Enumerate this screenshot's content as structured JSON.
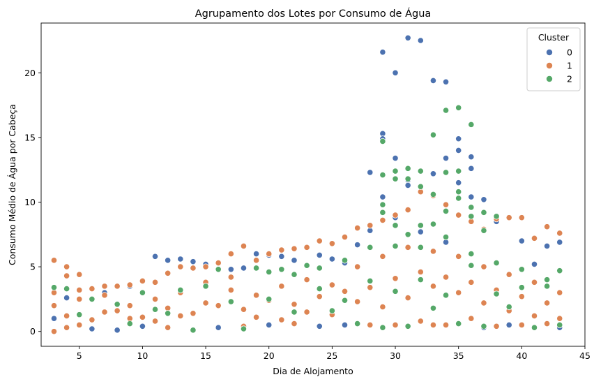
{
  "chart_data": {
    "type": "scatter",
    "title": "Agrupamento dos Lotes por Consumo de Água",
    "xlabel": "Dia de Alojamento",
    "ylabel": "Consumo Médio de Água por Cabeça",
    "xlim": [
      1.98,
      45
    ],
    "ylim": [
      -1.15,
      23.85
    ],
    "x_ticks": [
      5,
      10,
      15,
      20,
      25,
      30,
      35,
      40,
      45
    ],
    "y_ticks": [
      0,
      5,
      10,
      15,
      20
    ],
    "grid": false,
    "legend": {
      "title": "Cluster",
      "position": "top-right"
    },
    "series": [
      {
        "name": "0",
        "color": "#4c72b0",
        "points": [
          [
            29,
            21.6
          ],
          [
            30,
            20.0
          ],
          [
            31,
            22.7
          ],
          [
            32,
            22.5
          ],
          [
            33,
            19.4
          ],
          [
            34,
            19.3
          ],
          [
            29,
            15.3
          ],
          [
            29,
            14.9
          ],
          [
            35,
            14.9
          ],
          [
            35,
            14.0
          ],
          [
            30,
            13.4
          ],
          [
            34,
            13.4
          ],
          [
            36,
            13.5
          ],
          [
            36,
            12.6
          ],
          [
            28,
            12.3
          ],
          [
            33,
            12.2
          ],
          [
            31,
            11.7
          ],
          [
            31,
            11.3
          ],
          [
            35,
            11.5
          ],
          [
            37,
            10.2
          ],
          [
            36,
            10.4
          ],
          [
            29,
            10.4
          ],
          [
            30,
            8.8
          ],
          [
            11,
            5.8
          ],
          [
            12,
            5.5
          ],
          [
            13,
            5.6
          ],
          [
            19,
            6.0
          ],
          [
            20,
            5.9
          ],
          [
            21,
            5.8
          ],
          [
            24,
            5.9
          ],
          [
            28,
            7.8
          ],
          [
            38,
            8.5
          ],
          [
            43,
            6.9
          ],
          [
            42,
            6.6
          ],
          [
            40,
            7.0
          ],
          [
            15,
            5.2
          ],
          [
            17,
            4.8
          ],
          [
            22,
            5.5
          ],
          [
            25,
            5.6
          ],
          [
            26,
            5.3
          ],
          [
            3,
            1.0
          ],
          [
            4,
            2.6
          ],
          [
            6,
            0.2
          ],
          [
            8,
            0.1
          ],
          [
            10,
            0.4
          ],
          [
            16,
            0.3
          ],
          [
            20,
            0.5
          ],
          [
            24,
            0.4
          ],
          [
            26,
            0.5
          ],
          [
            37,
            0.3
          ],
          [
            39,
            0.5
          ],
          [
            43,
            0.3
          ],
          [
            7,
            3.0
          ],
          [
            9,
            3.5
          ],
          [
            14,
            5.4
          ],
          [
            18,
            4.9
          ],
          [
            27,
            6.7
          ],
          [
            32,
            7.7
          ],
          [
            34,
            6.9
          ],
          [
            41,
            5.2
          ]
        ]
      },
      {
        "name": "1",
        "color": "#dd8452",
        "points": [
          [
            3,
            5.5
          ],
          [
            4,
            5.0
          ],
          [
            4,
            4.3
          ],
          [
            5,
            4.4
          ],
          [
            8,
            3.5
          ],
          [
            11,
            3.8
          ],
          [
            12,
            4.5
          ],
          [
            13,
            5.0
          ],
          [
            16,
            5.3
          ],
          [
            17,
            6.0
          ],
          [
            18,
            6.6
          ],
          [
            20,
            6.0
          ],
          [
            21,
            6.3
          ],
          [
            22,
            6.4
          ],
          [
            23,
            6.5
          ],
          [
            24,
            7.0
          ],
          [
            25,
            6.8
          ],
          [
            26,
            7.3
          ],
          [
            27,
            8.0
          ],
          [
            28,
            8.2
          ],
          [
            29,
            8.6
          ],
          [
            30,
            9.0
          ],
          [
            31,
            9.4
          ],
          [
            32,
            10.8
          ],
          [
            33,
            10.5
          ],
          [
            34,
            9.8
          ],
          [
            35,
            9.0
          ],
          [
            36,
            8.5
          ],
          [
            37,
            7.9
          ],
          [
            38,
            8.7
          ],
          [
            39,
            8.8
          ],
          [
            40,
            8.8
          ],
          [
            41,
            7.2
          ],
          [
            42,
            8.1
          ],
          [
            43,
            7.6
          ],
          [
            3,
            0.0
          ],
          [
            3,
            3.0
          ],
          [
            4,
            0.3
          ],
          [
            5,
            0.5
          ],
          [
            6,
            3.3
          ],
          [
            7,
            3.5
          ],
          [
            9,
            3.6
          ],
          [
            10,
            3.9
          ],
          [
            14,
            4.9
          ],
          [
            15,
            5.0
          ],
          [
            19,
            5.5
          ],
          [
            3,
            2.0
          ],
          [
            5,
            2.5
          ],
          [
            7,
            1.5
          ],
          [
            9,
            2.0
          ],
          [
            11,
            2.5
          ],
          [
            13,
            3.0
          ],
          [
            15,
            2.2
          ],
          [
            17,
            3.2
          ],
          [
            19,
            2.8
          ],
          [
            21,
            3.5
          ],
          [
            23,
            4.0
          ],
          [
            25,
            3.6
          ],
          [
            27,
            5.0
          ],
          [
            29,
            5.8
          ],
          [
            31,
            6.5
          ],
          [
            33,
            6.2
          ],
          [
            35,
            5.8
          ],
          [
            37,
            5.0
          ],
          [
            39,
            4.4
          ],
          [
            41,
            3.8
          ],
          [
            43,
            3.0
          ],
          [
            4,
            1.2
          ],
          [
            6,
            0.9
          ],
          [
            8,
            1.6
          ],
          [
            10,
            1.1
          ],
          [
            12,
            1.8
          ],
          [
            14,
            1.4
          ],
          [
            16,
            2.0
          ],
          [
            18,
            1.7
          ],
          [
            20,
            2.4
          ],
          [
            22,
            2.1
          ],
          [
            24,
            2.7
          ],
          [
            26,
            3.1
          ],
          [
            28,
            3.4
          ],
          [
            30,
            4.1
          ],
          [
            32,
            4.6
          ],
          [
            34,
            4.2
          ],
          [
            36,
            3.8
          ],
          [
            38,
            3.2
          ],
          [
            40,
            2.7
          ],
          [
            42,
            2.2
          ],
          [
            12,
            0.3
          ],
          [
            18,
            0.4
          ],
          [
            22,
            0.6
          ],
          [
            28,
            0.5
          ],
          [
            30,
            0.5
          ],
          [
            32,
            0.8
          ],
          [
            33,
            0.5
          ],
          [
            34,
            0.5
          ],
          [
            36,
            1.0
          ],
          [
            38,
            0.4
          ],
          [
            40,
            0.5
          ],
          [
            42,
            0.6
          ],
          [
            5,
            3.2
          ],
          [
            7,
            2.8
          ],
          [
            9,
            1.0
          ],
          [
            11,
            0.8
          ],
          [
            13,
            1.2
          ],
          [
            15,
            3.8
          ],
          [
            17,
            4.2
          ],
          [
            19,
            1.1
          ],
          [
            21,
            0.9
          ],
          [
            23,
            1.5
          ],
          [
            25,
            1.3
          ],
          [
            27,
            2.3
          ],
          [
            29,
            1.9
          ],
          [
            31,
            2.6
          ],
          [
            33,
            3.5
          ],
          [
            35,
            3.0
          ],
          [
            37,
            2.2
          ],
          [
            39,
            1.6
          ],
          [
            41,
            1.2
          ],
          [
            43,
            1.0
          ]
        ]
      },
      {
        "name": "2",
        "color": "#55a868",
        "points": [
          [
            29,
            14.7
          ],
          [
            29,
            12.1
          ],
          [
            30,
            12.4
          ],
          [
            31,
            12.6
          ],
          [
            32,
            12.4
          ],
          [
            30,
            11.8
          ],
          [
            31,
            11.8
          ],
          [
            32,
            11.2
          ],
          [
            33,
            15.2
          ],
          [
            34,
            17.1
          ],
          [
            35,
            17.3
          ],
          [
            36,
            16.0
          ],
          [
            34,
            12.3
          ],
          [
            35,
            12.4
          ],
          [
            33,
            10.6
          ],
          [
            35,
            10.8
          ],
          [
            36,
            9.6
          ],
          [
            37,
            9.2
          ],
          [
            29,
            9.8
          ],
          [
            29,
            9.2
          ],
          [
            30,
            8.2
          ],
          [
            31,
            7.5
          ],
          [
            32,
            8.2
          ],
          [
            33,
            8.3
          ],
          [
            34,
            9.3
          ],
          [
            35,
            10.3
          ],
          [
            36,
            8.9
          ],
          [
            38,
            8.9
          ],
          [
            37,
            7.8
          ],
          [
            3,
            3.4
          ],
          [
            4,
            3.3
          ],
          [
            6,
            2.5
          ],
          [
            8,
            2.1
          ],
          [
            10,
            3.0
          ],
          [
            13,
            3.2
          ],
          [
            15,
            3.5
          ],
          [
            16,
            4.8
          ],
          [
            19,
            4.9
          ],
          [
            20,
            4.6
          ],
          [
            21,
            4.8
          ],
          [
            22,
            4.4
          ],
          [
            23,
            5.1
          ],
          [
            24,
            4.9
          ],
          [
            26,
            5.5
          ],
          [
            28,
            6.5
          ],
          [
            30,
            6.6
          ],
          [
            32,
            6.5
          ],
          [
            34,
            7.3
          ],
          [
            36,
            6.0
          ],
          [
            38,
            5.3
          ],
          [
            40,
            4.8
          ],
          [
            42,
            4.0
          ],
          [
            43,
            4.7
          ],
          [
            12,
            1.4
          ],
          [
            14,
            0.1
          ],
          [
            18,
            0.2
          ],
          [
            20,
            2.5
          ],
          [
            25,
            1.6
          ],
          [
            27,
            0.6
          ],
          [
            29,
            0.3
          ],
          [
            31,
            0.4
          ],
          [
            33,
            1.8
          ],
          [
            35,
            0.6
          ],
          [
            37,
            0.4
          ],
          [
            39,
            1.9
          ],
          [
            41,
            0.3
          ],
          [
            43,
            0.5
          ],
          [
            5,
            1.3
          ],
          [
            9,
            0.6
          ],
          [
            11,
            1.7
          ],
          [
            17,
            2.3
          ],
          [
            22,
            1.5
          ],
          [
            24,
            3.3
          ],
          [
            26,
            2.4
          ],
          [
            28,
            3.9
          ],
          [
            30,
            3.1
          ],
          [
            32,
            4.0
          ],
          [
            34,
            2.8
          ],
          [
            36,
            5.1
          ],
          [
            38,
            2.9
          ],
          [
            40,
            3.4
          ],
          [
            42,
            3.5
          ]
        ]
      }
    ]
  }
}
